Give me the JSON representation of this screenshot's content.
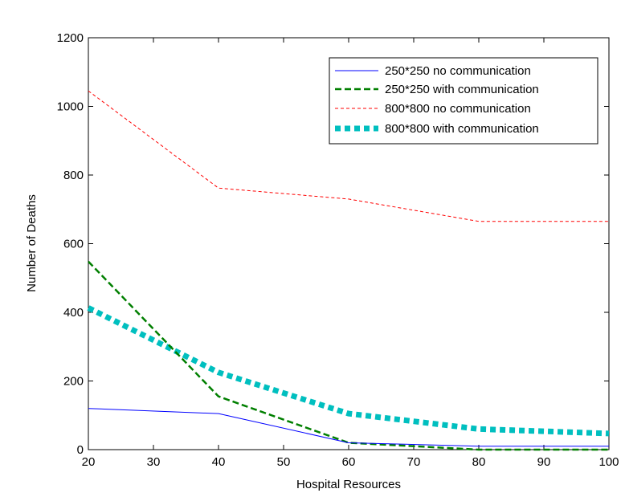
{
  "chart_data": {
    "type": "line",
    "title": "",
    "xlabel": "Hospital Resources",
    "ylabel": "Number of Deaths",
    "xlim": [
      20,
      100
    ],
    "ylim": [
      0,
      1200
    ],
    "xticks": [
      20,
      30,
      40,
      50,
      60,
      70,
      80,
      90,
      100
    ],
    "yticks": [
      0,
      200,
      400,
      600,
      800,
      1000,
      1200
    ],
    "grid": false,
    "legend_position": "top-right",
    "x": [
      20,
      40,
      60,
      80,
      100
    ],
    "series": [
      {
        "name": "250*250 no communication",
        "values": [
          120,
          105,
          20,
          10,
          10
        ],
        "color": "#0000ff",
        "style": "solid"
      },
      {
        "name": "250*250 with communication",
        "values": [
          548,
          155,
          20,
          0,
          0
        ],
        "color": "#007f00",
        "style": "dashed"
      },
      {
        "name": "800*800 no communication",
        "values": [
          1045,
          762,
          730,
          665,
          665
        ],
        "color": "#ff0000",
        "style": "dotted"
      },
      {
        "name": "800*800 with communication",
        "values": [
          413,
          225,
          105,
          60,
          47
        ],
        "color": "#00bfbf",
        "style": "thick-dotted"
      }
    ]
  }
}
